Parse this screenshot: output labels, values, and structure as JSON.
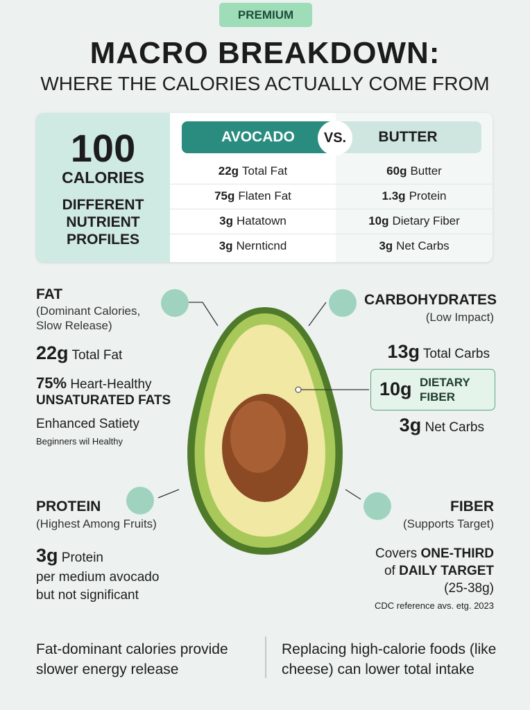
{
  "badge": "PREMIUM",
  "title": "MACRO BREAKDOWN:",
  "subtitle": "WHERE THE CALORIES ACTUALLY COME FROM",
  "summary": {
    "number": "100",
    "unit": "CALORIES",
    "caption": [
      "DIFFERENT",
      "NUTRIENT",
      "PROFILES"
    ]
  },
  "comparison": {
    "left": "AVOCADO",
    "vs": "VS.",
    "right": "BUTTER",
    "rows": [
      {
        "left_amount": "22g",
        "left_text": "Total Fat",
        "right_amount": "60g",
        "right_text": "Butter"
      },
      {
        "left_amount": "75g",
        "left_text": "Flaten Fat",
        "right_amount": "1.3g",
        "right_text": "Protein"
      },
      {
        "left_amount": "3g",
        "left_text": "Hatatown",
        "right_amount": "10g",
        "right_text": "Dietary Fiber"
      },
      {
        "left_amount": "3g",
        "left_text": "Nernticnd",
        "right_amount": "3g",
        "right_text": "Net Carbs"
      }
    ]
  },
  "fat": {
    "title": "FAT",
    "note": [
      "(Dominant Calories,",
      "Slow Release)"
    ],
    "amount": "22g",
    "amount_text": "Total Fat",
    "percent": "75%",
    "percent_text": "Heart-Healthy",
    "emphasis": "UNSATURATED FATS",
    "benefit": "Enhanced Satiety",
    "benefit_note": "Beginners wil Healthy"
  },
  "carbs": {
    "title": "CARBOHYDRATES",
    "note": "(Low Impact)",
    "total_amount": "13g",
    "total_text": "Total Carbs",
    "fiber_amount": "10g",
    "fiber_text": [
      "DIETARY",
      "FIBER"
    ],
    "net_amount": "3g",
    "net_text": "Net Carbs"
  },
  "protein": {
    "title": "PROTEIN",
    "note": "(Highest Among Fruits)",
    "amount": "3g",
    "amount_text": "Protein",
    "lines": [
      "per medium avocado",
      "but not significant"
    ]
  },
  "fiber": {
    "title": "FIBER",
    "note": "(Supports Target)",
    "line1_text": "Covers",
    "line1_bold": "ONE-THIRD",
    "line2_text": "of",
    "line2_bold": "DAILY TARGET",
    "range": "(25-38g)",
    "source": "CDC reference avs. etg. 2023"
  },
  "footer": {
    "left": [
      "Fat-dominant calories provide",
      "slower energy release"
    ],
    "right": [
      "Replacing high-calorie foods (like",
      "cheese) can lower total intake"
    ]
  }
}
